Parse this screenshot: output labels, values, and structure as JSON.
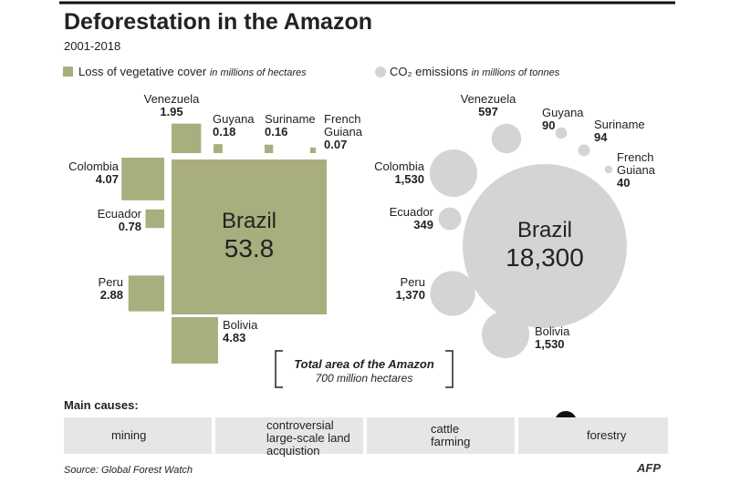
{
  "title": "Deforestation in the Amazon",
  "subtitle": "2001-2018",
  "chart_data": [
    {
      "type": "square-area",
      "legend": "Loss of vegetative cover",
      "unit": "in millions of hectares",
      "color": "#a9ae7f",
      "categories": [
        "Brazil",
        "Venezuela",
        "Guyana",
        "Suriname",
        "French Guiana",
        "Colombia",
        "Ecuador",
        "Peru",
        "Bolivia"
      ],
      "values": [
        53.8,
        1.95,
        0.18,
        0.16,
        0.07,
        4.07,
        0.78,
        2.88,
        4.83
      ]
    },
    {
      "type": "bubble",
      "legend": "CO₂ emissions",
      "unit": "in millions of tonnes",
      "color": "#d4d4d4",
      "categories": [
        "Brazil",
        "Venezuela",
        "Guyana",
        "Suriname",
        "French Guiana",
        "Colombia",
        "Ecuador",
        "Peru",
        "Bolivia"
      ],
      "values": [
        18300,
        597,
        90,
        94,
        40,
        1530,
        349,
        1370,
        1530
      ],
      "value_labels": [
        "18,300",
        "597",
        "90",
        "94",
        "40",
        "1,530",
        "349",
        "1,370",
        "1,530"
      ]
    }
  ],
  "note": {
    "title": "Total area of the Amazon",
    "text": "700 million hectares"
  },
  "causes": {
    "title": "Main causes:",
    "items": [
      "mining",
      "controversial large-scale land acquistion",
      "cattle farming",
      "forestry"
    ]
  },
  "source": "Source: Global Forest Watch",
  "credit": "AFP"
}
